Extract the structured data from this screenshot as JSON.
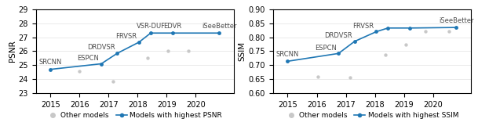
{
  "chart_data": [
    {
      "type": "line",
      "ylabel": "PSNR",
      "xlim": [
        2014.5,
        2021.3
      ],
      "xticks": [
        2015,
        2016,
        2017,
        2018,
        2019,
        2020
      ],
      "ylim": [
        23,
        29
      ],
      "yticks": [
        23,
        24,
        25,
        26,
        27,
        28,
        29
      ],
      "grid": "y",
      "legend": "below",
      "series": [
        {
          "name": "Other models",
          "type": "scatter",
          "color": "#c8c8c8",
          "marker": "o",
          "x": [
            2016.0,
            2017.15,
            2018.35,
            2019.05,
            2019.75
          ],
          "values": [
            24.55,
            23.85,
            25.5,
            26.0,
            26.0
          ]
        },
        {
          "name": "Models with highest PSNR",
          "type": "line",
          "marker": "o",
          "line_style": "solid",
          "x": [
            2015,
            2016.75,
            2017.3,
            2018.05,
            2018.45,
            2019.2,
            2020.8
          ],
          "values": [
            24.7,
            25.1,
            25.85,
            26.65,
            27.3,
            27.3,
            27.3
          ],
          "annotations": [
            "SRCNN",
            "ESPCN",
            "DRDVSR",
            "FRVSR",
            "VSR-DUF",
            "EDVR",
            "iSeeBetter"
          ]
        }
      ]
    },
    {
      "type": "line",
      "ylabel": "SSIM",
      "xlim": [
        2014.5,
        2021.3
      ],
      "xticks": [
        2015,
        2016,
        2017,
        2018,
        2019,
        2020
      ],
      "ylim": [
        0.6,
        0.9
      ],
      "yticks": [
        {
          "value": 0.6,
          "label": "0.60"
        },
        {
          "value": 0.65,
          "label": "0.65"
        },
        {
          "value": 0.7,
          "label": "0.70"
        },
        {
          "value": 0.75,
          "label": "0.75"
        },
        {
          "value": 0.8,
          "label": "0.80"
        },
        {
          "value": 0.85,
          "label": "0.85"
        },
        {
          "value": 0.9,
          "label": "0.90"
        }
      ],
      "grid": "y",
      "legend": "below",
      "series": [
        {
          "name": "Other models",
          "type": "scatter",
          "color": "#c8c8c8",
          "marker": "o",
          "x": [
            2016.05,
            2017.15,
            2018.35,
            2019.05,
            2019.75,
            2020.55
          ],
          "values": [
            0.66,
            0.655,
            0.738,
            0.775,
            0.82,
            0.82
          ]
        },
        {
          "name": "Models with highest SSIM",
          "type": "line",
          "marker": "o",
          "line_style": "solid",
          "x": [
            2015,
            2016.75,
            2017.3,
            2018.05,
            2018.45,
            2019.2,
            2020.8
          ],
          "values": [
            0.714,
            0.742,
            0.785,
            0.82,
            0.833,
            0.833,
            0.835
          ],
          "annotations": [
            "SRCNN",
            "ESPCN",
            "DRDVSR",
            "FRVSR",
            null,
            null,
            "iSeeBetter"
          ]
        }
      ]
    }
  ]
}
